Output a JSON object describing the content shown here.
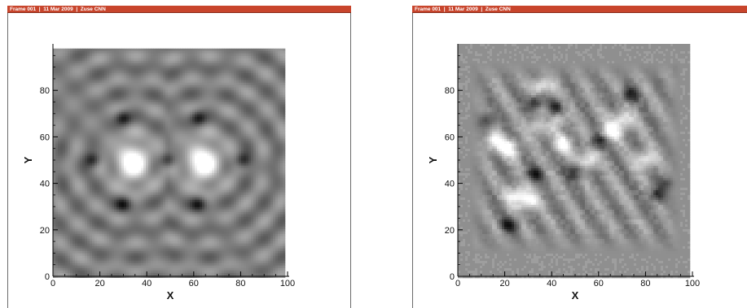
{
  "chart_data": [
    {
      "type": "heatmap",
      "frame_label": "Frame 001  |  11 Mar 2009  |  Zuse CNN",
      "xlabel": "X",
      "ylabel": "Y",
      "xlim": [
        0,
        100
      ],
      "ylim": [
        0,
        100
      ],
      "data_extent_x": [
        0,
        98
      ],
      "data_extent_y": [
        0,
        98
      ],
      "xticks": [
        0,
        20,
        40,
        60,
        80,
        100
      ],
      "yticks": [
        0,
        20,
        40,
        60,
        80
      ],
      "field": {
        "kind": "two-lobe",
        "background_gray": 0.5,
        "peaks": [
          {
            "x": 34,
            "y": 49,
            "value": 1.0
          },
          {
            "x": 64,
            "y": 49,
            "value": 1.0
          }
        ],
        "dark_spots": [
          {
            "x": 17,
            "y": 50
          },
          {
            "x": 81,
            "y": 50
          },
          {
            "x": 30,
            "y": 68
          },
          {
            "x": 62,
            "y": 68
          },
          {
            "x": 30,
            "y": 31
          },
          {
            "x": 62,
            "y": 31
          },
          {
            "x": 49,
            "y": 50
          }
        ],
        "concentric_rings": true
      }
    },
    {
      "type": "heatmap",
      "frame_label": "Frame 001  |  11 Mar 2009  |  Zuse CNN",
      "xlabel": "X",
      "ylabel": "Y",
      "xlim": [
        0,
        100
      ],
      "ylim": [
        0,
        100
      ],
      "data_extent_x": [
        0,
        98
      ],
      "data_extent_y": [
        0,
        100
      ],
      "xticks": [
        0,
        20,
        40,
        60,
        80,
        100
      ],
      "yticks": [
        0,
        20,
        40,
        60,
        80
      ],
      "field": {
        "kind": "turbulent",
        "background_gray": 0.56,
        "bright_spots": [
          {
            "x": 15,
            "y": 58
          },
          {
            "x": 22,
            "y": 55
          },
          {
            "x": 35,
            "y": 65
          },
          {
            "x": 42,
            "y": 68
          },
          {
            "x": 55,
            "y": 50
          },
          {
            "x": 65,
            "y": 62
          },
          {
            "x": 70,
            "y": 67
          },
          {
            "x": 25,
            "y": 35
          },
          {
            "x": 30,
            "y": 32
          },
          {
            "x": 45,
            "y": 57
          },
          {
            "x": 80,
            "y": 50
          },
          {
            "x": 36,
            "y": 82
          }
        ],
        "dark_spots": [
          {
            "x": 33,
            "y": 75
          },
          {
            "x": 38,
            "y": 67
          },
          {
            "x": 42,
            "y": 72
          },
          {
            "x": 60,
            "y": 58
          },
          {
            "x": 85,
            "y": 35
          },
          {
            "x": 90,
            "y": 40
          },
          {
            "x": 22,
            "y": 22
          },
          {
            "x": 33,
            "y": 44
          },
          {
            "x": 50,
            "y": 45
          },
          {
            "x": 12,
            "y": 67
          },
          {
            "x": 73,
            "y": 78
          }
        ],
        "active_region": {
          "x": [
            5,
            95
          ],
          "y": [
            10,
            92
          ]
        }
      }
    }
  ]
}
